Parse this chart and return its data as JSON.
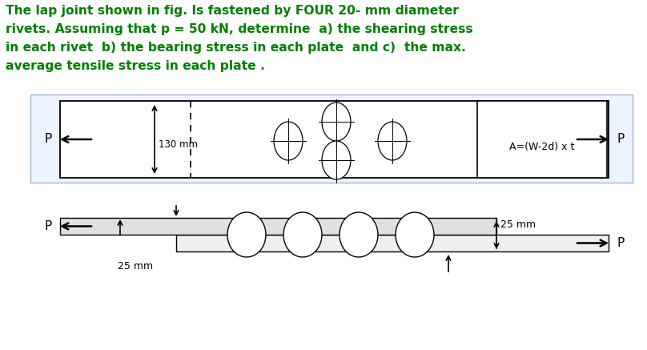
{
  "title_line1": "The lap joint shown in fig. Is fastened by FOUR 20- mm diameter",
  "title_line2": "rivets. Assuming that p = 50 kN, determine  a) the shearing stress",
  "title_line3": "in each rivet  b) the bearing stress in each plate  and c)  the max.",
  "title_line4": "average tensile stress in each plate .",
  "text_color": "#008000",
  "bg_color": "#ffffff",
  "title_fontsize": 11.2,
  "label_130mm": "130 mm",
  "label_25mm_bot": "25 mm",
  "label_25mm_right": "25 mm",
  "label_area": "A=(W-2d) x t",
  "label_P": "P",
  "plate_fill": "#f8f8f8",
  "plate_edge": "#000000",
  "border_fill": "#eef4ff"
}
